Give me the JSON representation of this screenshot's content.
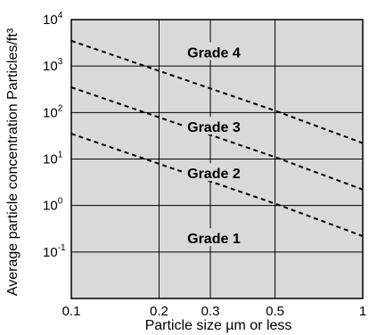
{
  "chart_data": {
    "type": "line",
    "title": "",
    "xlabel": "Particle size  µm or less",
    "ylabel": "Average particle concentration  Particles/ft³",
    "x_scale": "log",
    "y_scale": "log",
    "xlim": [
      0.1,
      1
    ],
    "ylim": [
      0.01,
      10000
    ],
    "grid": true,
    "x_ticks": [
      {
        "value": 0.1,
        "label": "0.1"
      },
      {
        "value": 0.2,
        "label": "0.2"
      },
      {
        "value": 0.3,
        "label": "0.3"
      },
      {
        "value": 0.5,
        "label": "0.5"
      },
      {
        "value": 1,
        "label": "1"
      }
    ],
    "y_ticks": [
      {
        "value": 10000,
        "base": "10",
        "exp": "4"
      },
      {
        "value": 1000,
        "base": "10",
        "exp": "3"
      },
      {
        "value": 100,
        "base": "10",
        "exp": "2"
      },
      {
        "value": 10,
        "base": "10",
        "exp": "1"
      },
      {
        "value": 1,
        "base": "10",
        "exp": "0"
      },
      {
        "value": 0.1,
        "base": "10",
        "exp": "-1"
      }
    ],
    "series": [
      {
        "name": "Grade 4",
        "x": [
          0.1,
          0.5,
          1
        ],
        "y": [
          3500,
          110,
          22
        ]
      },
      {
        "name": "Grade 3",
        "x": [
          0.1,
          0.5,
          1
        ],
        "y": [
          350,
          11,
          2.2
        ]
      },
      {
        "name": "Grade 2",
        "x": [
          0.1,
          0.5,
          1
        ],
        "y": [
          35,
          1.1,
          0.22
        ]
      }
    ],
    "annotations": [
      {
        "text": "Grade 4",
        "x": 0.25,
        "y": 2000
      },
      {
        "text": "Grade 3",
        "x": 0.25,
        "y": 50
      },
      {
        "text": "Grade 2",
        "x": 0.25,
        "y": 5
      },
      {
        "text": "Grade 1",
        "x": 0.25,
        "y": 0.2
      }
    ],
    "colors": {
      "plot_background": "#d9d9d9",
      "line": "#000000",
      "grid": "#000000"
    }
  }
}
